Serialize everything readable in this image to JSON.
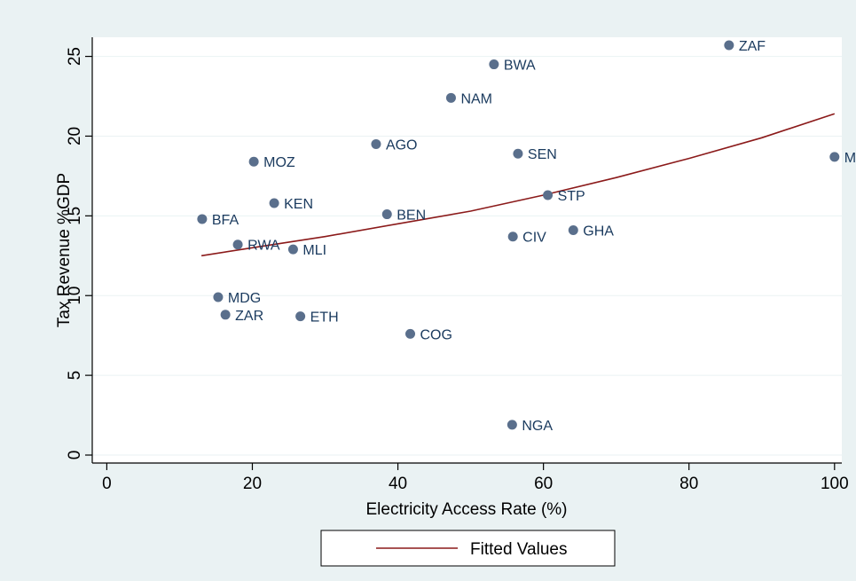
{
  "chart_data": {
    "type": "scatter",
    "title": "",
    "xlabel": "Electricity Access Rate (%)",
    "ylabel": "Tax Revenue %GDP",
    "xlim": [
      -2,
      101
    ],
    "ylim": [
      -0.5,
      26.2
    ],
    "xticks": [
      0,
      20,
      40,
      60,
      80,
      100
    ],
    "yticks": [
      0,
      5,
      10,
      15,
      20,
      25
    ],
    "grid": true,
    "legend_position": "bottom-center",
    "colors": {
      "points": "#5a6f8c",
      "labels": "#1a3a5e",
      "fit_line": "#8b1a1a",
      "outer_background": "#eaf2f3",
      "plot_background": "#ffffff"
    },
    "points": [
      {
        "label": "ZAF",
        "x": 85.5,
        "y": 25.7
      },
      {
        "label": "BWA",
        "x": 53.2,
        "y": 24.5
      },
      {
        "label": "NAM",
        "x": 47.3,
        "y": 22.4
      },
      {
        "label": "AGO",
        "x": 37.0,
        "y": 19.5
      },
      {
        "label": "SEN",
        "x": 56.5,
        "y": 18.9
      },
      {
        "label": "MOZ",
        "x": 20.2,
        "y": 18.4
      },
      {
        "label": "MUS",
        "x": 100.0,
        "y": 18.7
      },
      {
        "label": "KEN",
        "x": 23.0,
        "y": 15.8
      },
      {
        "label": "STP",
        "x": 60.6,
        "y": 16.3
      },
      {
        "label": "BFA",
        "x": 13.1,
        "y": 14.8
      },
      {
        "label": "BEN",
        "x": 38.5,
        "y": 15.1
      },
      {
        "label": "GHA",
        "x": 64.1,
        "y": 14.1
      },
      {
        "label": "CIV",
        "x": 55.8,
        "y": 13.7
      },
      {
        "label": "RWA",
        "x": 18.0,
        "y": 13.2
      },
      {
        "label": "MLI",
        "x": 25.6,
        "y": 12.9
      },
      {
        "label": "MDG",
        "x": 15.3,
        "y": 9.9
      },
      {
        "label": "ZAR",
        "x": 16.3,
        "y": 8.8
      },
      {
        "label": "ETH",
        "x": 26.6,
        "y": 8.7
      },
      {
        "label": "COG",
        "x": 41.7,
        "y": 7.6
      },
      {
        "label": "NGA",
        "x": 55.7,
        "y": 1.9
      }
    ],
    "series": [
      {
        "name": "Fitted Values",
        "type": "line",
        "x": [
          13,
          20,
          30,
          40,
          50,
          60,
          70,
          80,
          90,
          100
        ],
        "y": [
          12.5,
          13.0,
          13.7,
          14.5,
          15.3,
          16.3,
          17.4,
          18.6,
          19.9,
          21.4
        ]
      }
    ]
  }
}
